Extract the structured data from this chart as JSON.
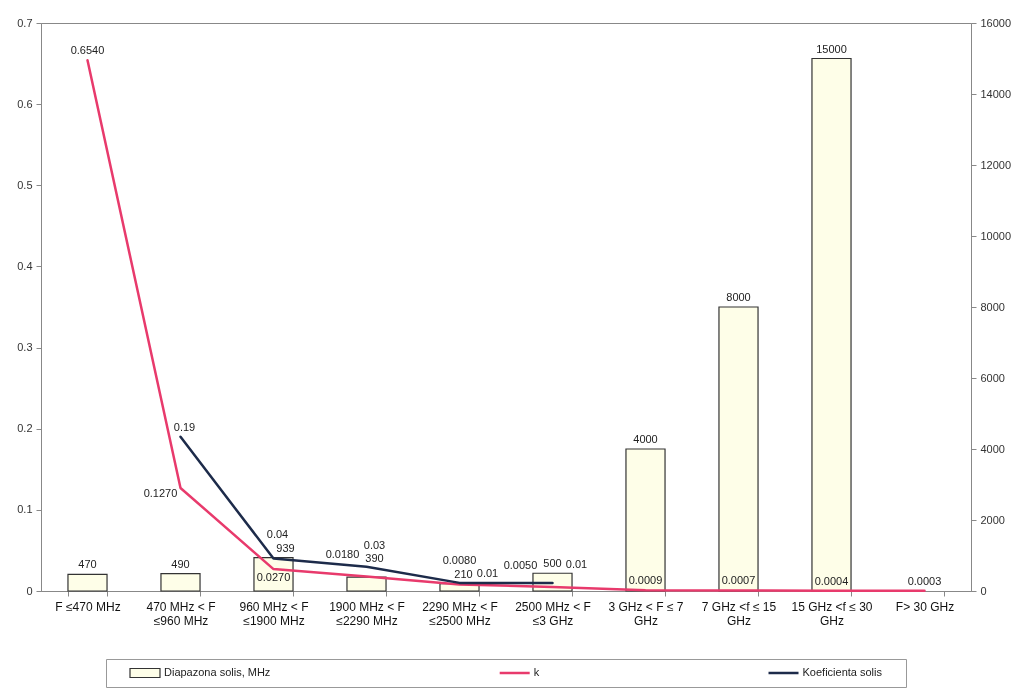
{
  "chart_data": {
    "type": "bar",
    "categories": [
      "F ≤470 MHz",
      "470 MHz < F ≤960 MHz",
      "960 MHz < F ≤1900 MHz",
      "1900 MHz < F ≤2290 MHz",
      "2290 MHz < F ≤2500 MHz",
      "2500 MHz < F ≤3 GHz",
      "3 GHz < F ≤ 7 GHz",
      "7 GHz <f ≤ 15 GHz",
      "15 GHz <f ≤ 30 GHz",
      "F> 30 GHz"
    ],
    "series": [
      {
        "name": "Diapazona solis, MHz",
        "axis": "y2",
        "color": "#fefee8",
        "values": [
          470,
          490,
          939,
          390,
          210,
          500,
          4000,
          8000,
          15000,
          null
        ],
        "value_labels": [
          "470",
          "490",
          "939",
          "390",
          "210",
          "500",
          "4000",
          "8000",
          "15000",
          null
        ]
      },
      {
        "name": "k",
        "type": "line",
        "color": "#e83a6c",
        "values": [
          0.654,
          0.127,
          0.027,
          0.018,
          0.008,
          0.005,
          0.0009,
          0.0007,
          0.0004,
          0.0003
        ],
        "value_labels": [
          "0.6540",
          "0.1270",
          "0.0270",
          "0.0180",
          "0.0080",
          "0.0050",
          "0.0009",
          "0.0007",
          "0.0004",
          "0.0003"
        ]
      },
      {
        "name": "Koeficienta solis",
        "type": "line",
        "color": "#1d2b4a",
        "values": [
          null,
          0.19,
          0.04,
          0.03,
          0.01,
          0.01,
          null,
          null,
          null,
          null
        ],
        "value_labels": [
          null,
          "0.19",
          "0.04",
          "0.03",
          "0.01",
          "0.01",
          null,
          null,
          null,
          null
        ]
      }
    ],
    "ylim": [
      0,
      0.7
    ],
    "yticks": [
      0,
      0.1,
      0.2,
      0.3,
      0.4,
      0.5,
      0.6,
      0.7
    ],
    "y2lim": [
      0,
      16000
    ],
    "y2ticks": [
      0,
      2000,
      4000,
      6000,
      8000,
      10000,
      12000,
      14000,
      16000
    ],
    "grid": false,
    "legend": "bottom"
  }
}
